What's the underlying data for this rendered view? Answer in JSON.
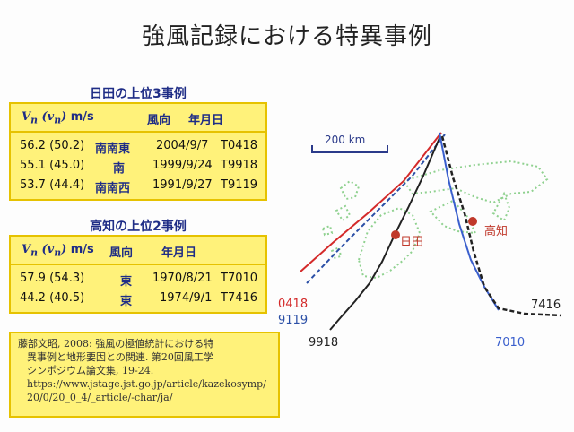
{
  "title": "強風記録における特異事例",
  "hita": {
    "caption": "日田の上位3事例",
    "headers": [
      "m/s",
      "風向",
      "年月日"
    ],
    "rows": [
      {
        "v": "56.2 (50.2)",
        "dir": "南南東",
        "date": "2004/9/7",
        "id": "T0418"
      },
      {
        "v": "55.1 (45.0)",
        "dir": "南",
        "date": "1999/9/24",
        "id": "T9918"
      },
      {
        "v": "53.7 (44.4)",
        "dir": "南南西",
        "date": "1991/9/27",
        "id": "T9119"
      }
    ]
  },
  "kochi": {
    "caption": "高知の上位2事例",
    "headers": [
      "m/s",
      "風向",
      "年月日"
    ],
    "rows": [
      {
        "v": "57.9 (54.3)",
        "dir": "東",
        "date": "1970/8/21",
        "id": "T7010"
      },
      {
        "v": "44.2 (40.5)",
        "dir": "東",
        "date": "1974/9/1",
        "id": "T7416"
      }
    ]
  },
  "reference": [
    "藤部文昭, 2008: 強風の極値統計における特",
    "異事例と地形要因との関連. 第20回風工学",
    "シンポジウム論文集, 19-24.",
    "https://www.jstage.jst.go.jp/article/kazekosymp/",
    "20/0/20_0_4/_article/-char/ja/"
  ],
  "map": {
    "scale": "200 km",
    "cities": {
      "hita": "日田",
      "kochi": "高知"
    },
    "tracks": {
      "t0418": "0418",
      "t9119": "9119",
      "t9918": "9918",
      "t7010": "7010",
      "t7416": "7416"
    },
    "colors": {
      "t0418": "#d42a2a",
      "t9119": "#2b4fa6",
      "t9918": "#222222",
      "t7010": "#3a5fcd",
      "t7416": "#222222",
      "coast": "#8fd18f",
      "city": "#c0392b"
    }
  }
}
